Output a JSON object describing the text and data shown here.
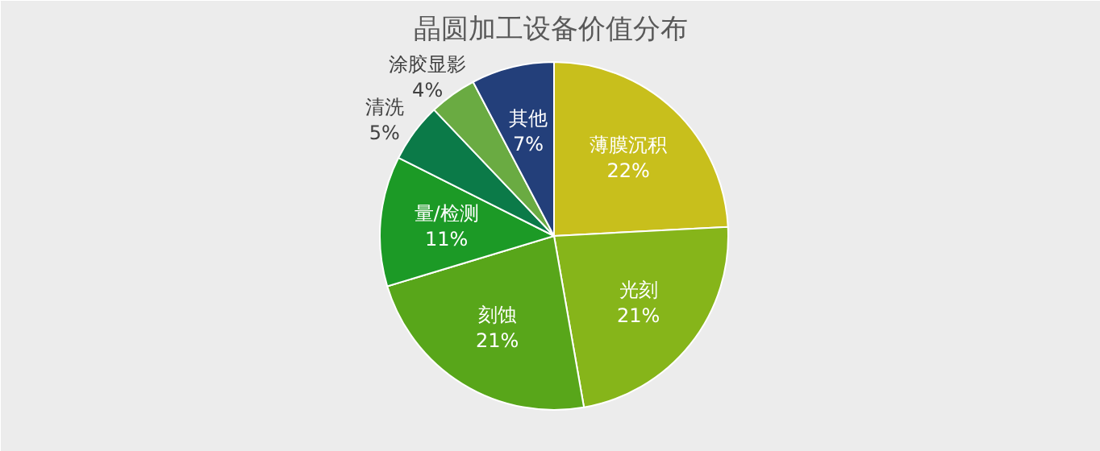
{
  "chart_data": {
    "type": "pie",
    "title": "晶圆加工设备价值分布",
    "categories": [
      "薄膜沉积",
      "光刻",
      "刻蚀",
      "量/检测",
      "清洗",
      "涂胶显影",
      "其他"
    ],
    "values": [
      22,
      21,
      21,
      11,
      5,
      4,
      7
    ],
    "value_labels": [
      "22%",
      "21%",
      "21%",
      "11%",
      "5%",
      "4%",
      "7%"
    ],
    "colors": [
      "#c8bf1c",
      "#86b51a",
      "#58a61a",
      "#1c9a26",
      "#0b7a48",
      "#6aab42",
      "#233f7a"
    ]
  }
}
